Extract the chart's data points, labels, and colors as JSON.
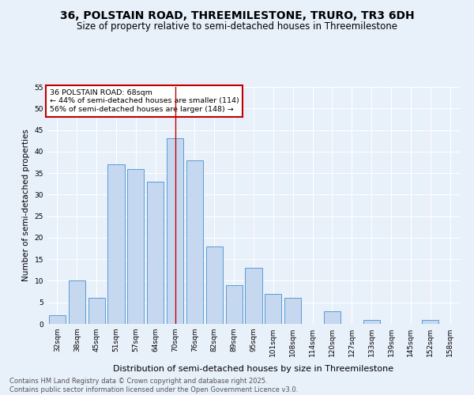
{
  "title": "36, POLSTAIN ROAD, THREEMILESTONE, TRURO, TR3 6DH",
  "subtitle": "Size of property relative to semi-detached houses in Threemilestone",
  "xlabel": "Distribution of semi-detached houses by size in Threemilestone",
  "ylabel": "Number of semi-detached properties",
  "bins": [
    "32sqm",
    "38sqm",
    "45sqm",
    "51sqm",
    "57sqm",
    "64sqm",
    "70sqm",
    "76sqm",
    "82sqm",
    "89sqm",
    "95sqm",
    "101sqm",
    "108sqm",
    "114sqm",
    "120sqm",
    "127sqm",
    "133sqm",
    "139sqm",
    "145sqm",
    "152sqm",
    "158sqm"
  ],
  "values": [
    2,
    10,
    6,
    37,
    36,
    33,
    43,
    38,
    18,
    9,
    13,
    7,
    6,
    0,
    3,
    0,
    1,
    0,
    0,
    1,
    0
  ],
  "bar_color": "#c5d8f0",
  "bar_edge_color": "#5b9bd5",
  "highlight_bin_index": 6,
  "highlight_color": "#c00000",
  "annotation_title": "36 POLSTAIN ROAD: 68sqm",
  "annotation_line1": "← 44% of semi-detached houses are smaller (114)",
  "annotation_line2": "56% of semi-detached houses are larger (148) →",
  "annotation_box_color": "#ffffff",
  "annotation_box_edge": "#c00000",
  "ylim": [
    0,
    55
  ],
  "yticks": [
    0,
    5,
    10,
    15,
    20,
    25,
    30,
    35,
    40,
    45,
    50,
    55
  ],
  "background_color": "#e8f0fa",
  "grid_color": "#ffffff",
  "footer1": "Contains HM Land Registry data © Crown copyright and database right 2025.",
  "footer2": "Contains public sector information licensed under the Open Government Licence v3.0.",
  "title_fontsize": 10,
  "subtitle_fontsize": 8.5,
  "xlabel_fontsize": 8,
  "ylabel_fontsize": 7.5,
  "tick_fontsize": 6.5,
  "footer_fontsize": 6
}
